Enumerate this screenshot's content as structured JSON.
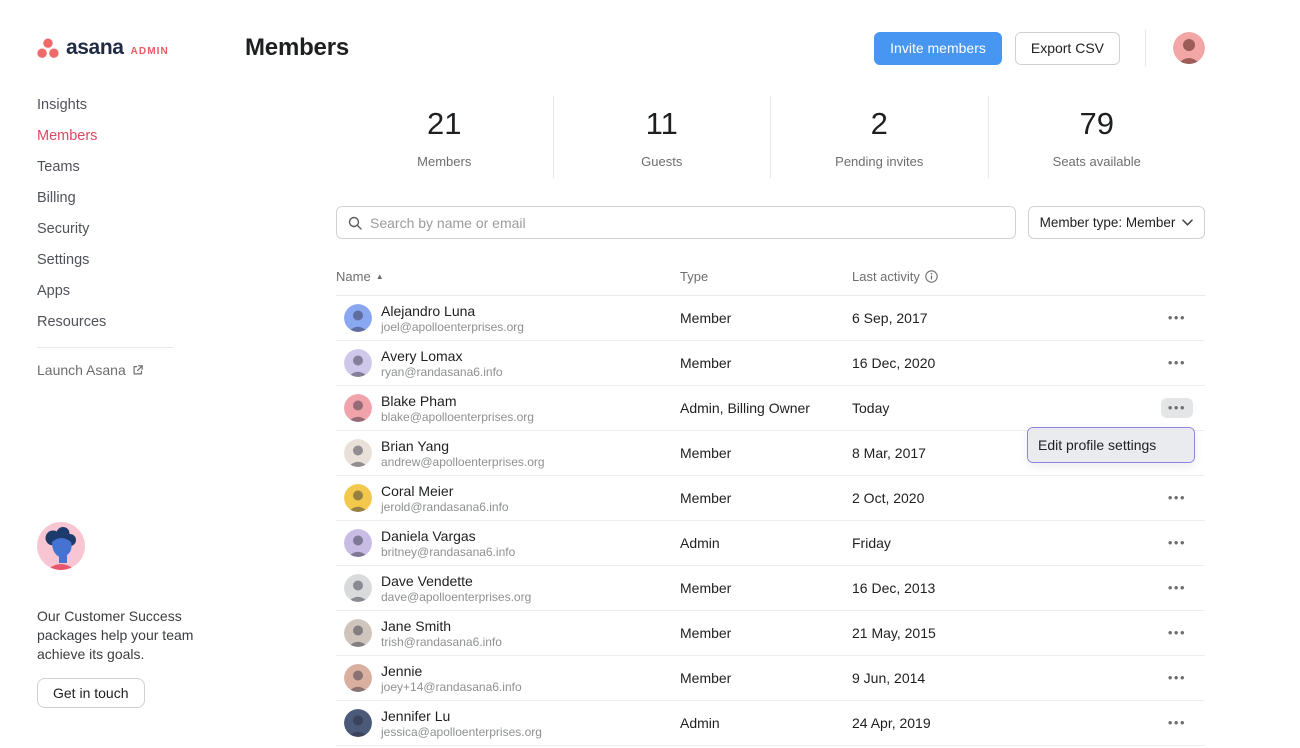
{
  "brand": {
    "name": "asana",
    "badge": "ADMIN",
    "dot_color": "#f06a6a",
    "word_color": "#1f2a44"
  },
  "colors": {
    "accent_blue": "#4796f2",
    "active_nav": "#dc4961",
    "menu_border": "#8f85e0",
    "top_avatar_bg": "#f2a6a6"
  },
  "sidebar": {
    "items": [
      {
        "label": "Insights",
        "active": false
      },
      {
        "label": "Members",
        "active": true
      },
      {
        "label": "Teams",
        "active": false
      },
      {
        "label": "Billing",
        "active": false
      },
      {
        "label": "Security",
        "active": false
      },
      {
        "label": "Settings",
        "active": false
      },
      {
        "label": "Apps",
        "active": false
      },
      {
        "label": "Resources",
        "active": false
      }
    ],
    "launch_label": "Launch Asana",
    "promo": {
      "text": "Our Customer Success packages help your team achieve its goals.",
      "button_label": "Get in touch"
    }
  },
  "header": {
    "title": "Members",
    "invite_button": "Invite members",
    "export_button": "Export CSV"
  },
  "stats": [
    {
      "value": "21",
      "label": "Members"
    },
    {
      "value": "11",
      "label": "Guests"
    },
    {
      "value": "2",
      "label": "Pending invites"
    },
    {
      "value": "79",
      "label": "Seats available"
    }
  ],
  "controls": {
    "search_placeholder": "Search by name or email",
    "filter_label": "Member type: Member"
  },
  "table": {
    "columns": [
      "Name",
      "Type",
      "Last activity"
    ],
    "sort_column": "Name",
    "sort_direction": "ascending",
    "rows": [
      {
        "name": "Alejandro Luna",
        "email": "joel@apolloenterprises.org",
        "type": "Member",
        "last_activity": "6 Sep, 2017",
        "avatar_color": "#8aa8f2",
        "menu_open": false
      },
      {
        "name": "Avery Lomax",
        "email": "ryan@randasana6.info",
        "type": "Member",
        "last_activity": "16 Dec, 2020",
        "avatar_color": "#cfc8ea",
        "menu_open": false
      },
      {
        "name": "Blake Pham",
        "email": "blake@apolloenterprises.org",
        "type": "Admin, Billing Owner",
        "last_activity": "Today",
        "avatar_color": "#f0a3ab",
        "menu_open": true
      },
      {
        "name": "Brian Yang",
        "email": "andrew@apolloenterprises.org",
        "type": "Member",
        "last_activity": "8 Mar, 2017",
        "avatar_color": "#e9e1d9",
        "menu_open": false
      },
      {
        "name": "Coral Meier",
        "email": "jerold@randasana6.info",
        "type": "Member",
        "last_activity": "2 Oct, 2020",
        "avatar_color": "#f2c94c",
        "menu_open": false
      },
      {
        "name": "Daniela Vargas",
        "email": "britney@randasana6.info",
        "type": "Admin",
        "last_activity": "Friday",
        "avatar_color": "#c9bce4",
        "menu_open": false
      },
      {
        "name": "Dave Vendette",
        "email": "dave@apolloenterprises.org",
        "type": "Member",
        "last_activity": "16 Dec, 2013",
        "avatar_color": "#d9dadc",
        "menu_open": false
      },
      {
        "name": "Jane Smith",
        "email": "trish@randasana6.info",
        "type": "Member",
        "last_activity": "21 May, 2015",
        "avatar_color": "#cfc5bd",
        "menu_open": false
      },
      {
        "name": "Jennie",
        "email": "joey+14@randasana6.info",
        "type": "Member",
        "last_activity": "9 Jun, 2014",
        "avatar_color": "#d9b0a0",
        "menu_open": false
      },
      {
        "name": "Jennifer Lu",
        "email": "jessica@apolloenterprises.org",
        "type": "Admin",
        "last_activity": "24 Apr, 2019",
        "avatar_color": "#4a5a78",
        "menu_open": false
      }
    ]
  },
  "context_menu": {
    "items": [
      "Edit profile settings"
    ]
  }
}
